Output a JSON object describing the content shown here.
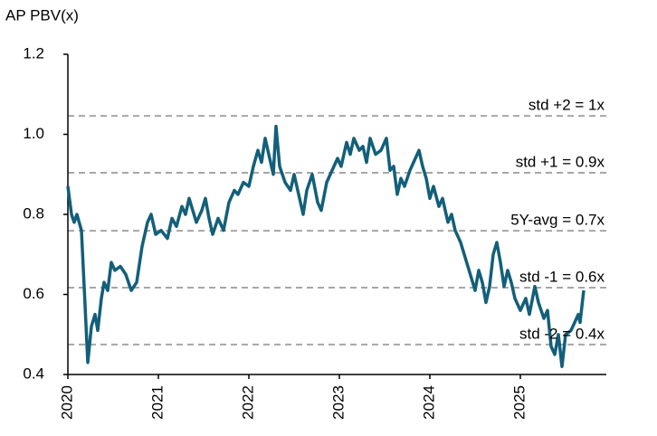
{
  "chart_data": {
    "type": "line",
    "y_axis_title": "AP PBV(x)",
    "xlim": [
      2020,
      2025.95
    ],
    "xticks": [
      2020,
      2021,
      2022,
      2023,
      2024,
      2025
    ],
    "ylim": [
      0.4,
      1.2
    ],
    "yticks": [
      0.4,
      0.6,
      0.8,
      {
        "value": 1,
        "label": "1.0"
      },
      1.2
    ],
    "reference_lines": [
      {
        "label": "std +2 = 1x",
        "value": 1.046
      },
      {
        "label": "std +1 = 0.9x",
        "value": 0.904
      },
      {
        "label": "5Y-avg = 0.7x",
        "value": 0.759
      },
      {
        "label": "std -1 = 0.6x",
        "value": 0.617
      },
      {
        "label": "std -2 = 0.4x",
        "value": 0.475
      }
    ],
    "reference_color": "#a6a6a6",
    "series": [
      {
        "color": "#135f7a",
        "x": [
          2020.0,
          2020.04,
          2020.07,
          2020.1,
          2020.15,
          2020.18,
          2020.22,
          2020.26,
          2020.3,
          2020.33,
          2020.37,
          2020.4,
          2020.44,
          2020.48,
          2020.52,
          2020.58,
          2020.64,
          2020.7,
          2020.76,
          2020.82,
          2020.88,
          2020.92,
          2020.97,
          2021.03,
          2021.1,
          2021.15,
          2021.2,
          2021.26,
          2021.3,
          2021.34,
          2021.38,
          2021.42,
          2021.48,
          2021.52,
          2021.56,
          2021.6,
          2021.66,
          2021.72,
          2021.78,
          2021.84,
          2021.88,
          2021.94,
          2022.0,
          2022.05,
          2022.1,
          2022.14,
          2022.18,
          2022.22,
          2022.27,
          2022.3,
          2022.34,
          2022.4,
          2022.46,
          2022.5,
          2022.56,
          2022.6,
          2022.64,
          2022.7,
          2022.76,
          2022.8,
          2022.86,
          2022.92,
          2022.98,
          2023.02,
          2023.08,
          2023.12,
          2023.16,
          2023.22,
          2023.26,
          2023.3,
          2023.34,
          2023.4,
          2023.46,
          2023.52,
          2023.56,
          2023.6,
          2023.64,
          2023.68,
          2023.72,
          2023.78,
          2023.82,
          2023.88,
          2023.92,
          2023.96,
          2024.0,
          2024.04,
          2024.1,
          2024.14,
          2024.2,
          2024.24,
          2024.28,
          2024.34,
          2024.38,
          2024.42,
          2024.46,
          2024.5,
          2024.54,
          2024.58,
          2024.62,
          2024.66,
          2024.7,
          2024.74,
          2024.78,
          2024.82,
          2024.86,
          2024.9,
          2024.94,
          2025.0,
          2025.06,
          2025.1,
          2025.16,
          2025.2,
          2025.26,
          2025.3,
          2025.34,
          2025.38,
          2025.42,
          2025.46,
          2025.5,
          2025.56,
          2025.6,
          2025.64,
          2025.66,
          2025.7
        ],
        "values": [
          0.87,
          0.8,
          0.78,
          0.8,
          0.76,
          0.62,
          0.43,
          0.52,
          0.55,
          0.51,
          0.59,
          0.63,
          0.61,
          0.68,
          0.66,
          0.67,
          0.65,
          0.61,
          0.63,
          0.72,
          0.78,
          0.8,
          0.75,
          0.76,
          0.74,
          0.79,
          0.77,
          0.82,
          0.8,
          0.84,
          0.81,
          0.78,
          0.81,
          0.84,
          0.79,
          0.75,
          0.79,
          0.76,
          0.83,
          0.86,
          0.85,
          0.88,
          0.87,
          0.92,
          0.96,
          0.93,
          0.99,
          0.95,
          0.9,
          1.02,
          0.92,
          0.88,
          0.86,
          0.9,
          0.84,
          0.8,
          0.86,
          0.9,
          0.83,
          0.81,
          0.88,
          0.91,
          0.94,
          0.92,
          0.98,
          0.95,
          0.99,
          0.96,
          0.97,
          0.93,
          0.99,
          0.95,
          0.96,
          0.99,
          0.91,
          0.92,
          0.85,
          0.89,
          0.87,
          0.91,
          0.93,
          0.96,
          0.92,
          0.89,
          0.84,
          0.87,
          0.82,
          0.84,
          0.78,
          0.8,
          0.76,
          0.73,
          0.7,
          0.67,
          0.64,
          0.61,
          0.66,
          0.63,
          0.58,
          0.62,
          0.7,
          0.73,
          0.68,
          0.62,
          0.66,
          0.63,
          0.59,
          0.56,
          0.59,
          0.55,
          0.62,
          0.58,
          0.54,
          0.56,
          0.47,
          0.45,
          0.5,
          0.42,
          0.5,
          0.51,
          0.53,
          0.55,
          0.53,
          0.61
        ]
      }
    ]
  }
}
